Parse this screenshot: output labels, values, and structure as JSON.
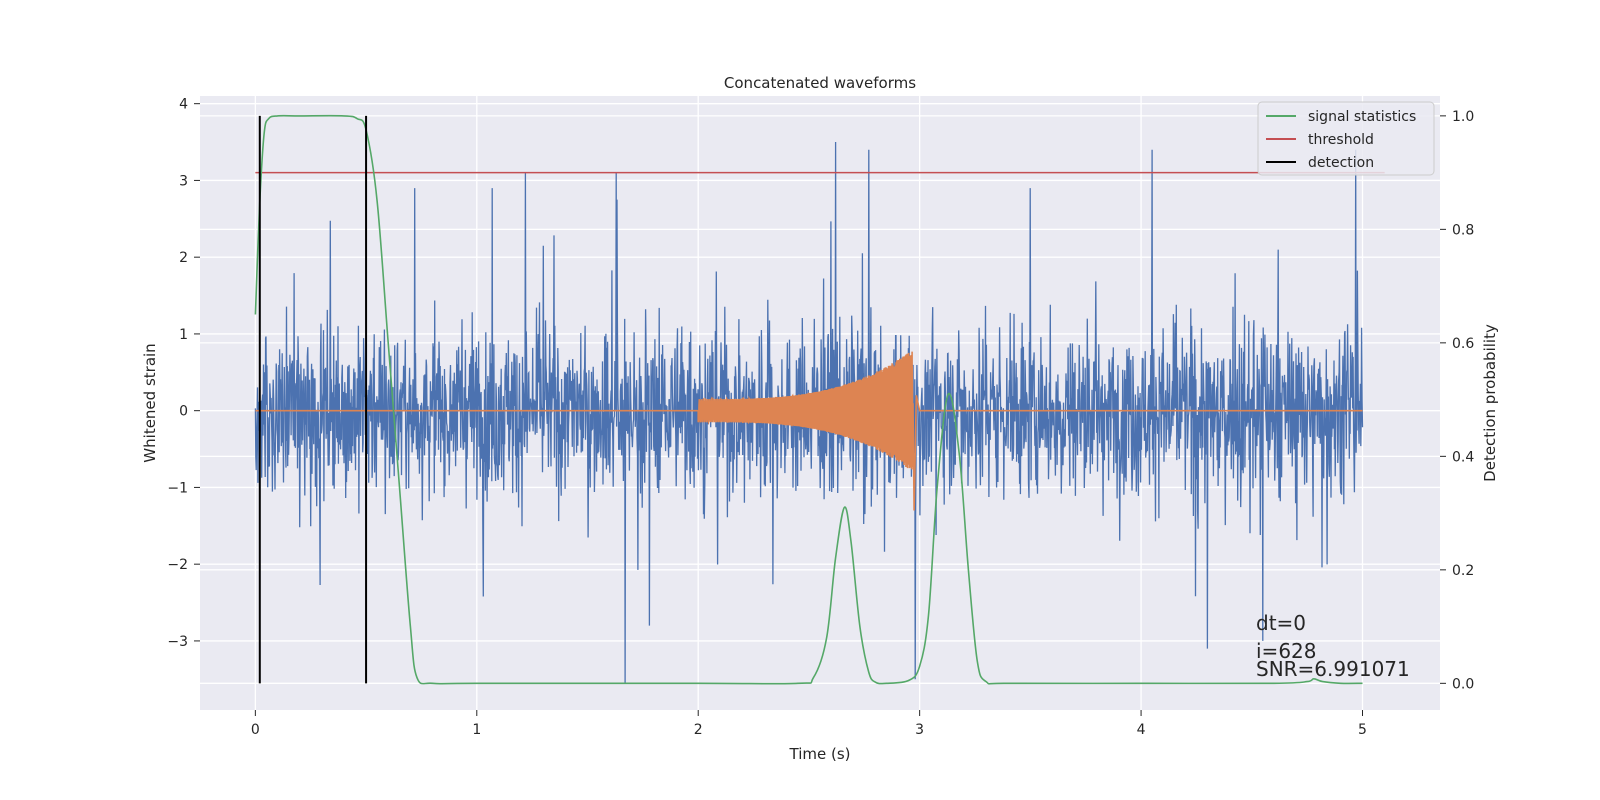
{
  "chart_data": {
    "type": "line",
    "title": "Concatenated waveforms",
    "xlabel": "Time (s)",
    "ylabel": "Whitened strain",
    "y2label": "Detection probability",
    "xlim": [
      -0.25,
      5.35
    ],
    "ylim": [
      -3.9,
      4.1
    ],
    "y2lim": [
      -0.047,
      1.035
    ],
    "xticks": [
      "0",
      "1",
      "2",
      "3",
      "4",
      "5"
    ],
    "xtick_values": [
      0,
      1,
      2,
      3,
      4,
      5
    ],
    "yticks": [
      "−3",
      "−2",
      "−1",
      "0",
      "1",
      "2",
      "3",
      "4"
    ],
    "ytick_values": [
      -3,
      -2,
      -1,
      0,
      1,
      2,
      3,
      4
    ],
    "y2ticks": [
      "0.0",
      "0.2",
      "0.4",
      "0.6",
      "0.8",
      "1.0"
    ],
    "y2tick_values": [
      0,
      0.2,
      0.4,
      0.6,
      0.8,
      1.0
    ],
    "grid": true,
    "legend_position": "top-right",
    "colors": {
      "strain": "#4c72b0",
      "template": "#dd8452",
      "signal_statistics": "#55a868",
      "threshold": "#c44e52",
      "detection": "#000000",
      "background": "#eaeaf2",
      "grid": "#ffffff"
    },
    "series": [
      {
        "name": "",
        "axis": "left",
        "description_kind": "noise",
        "x_range": [
          0,
          5
        ],
        "amplitude_envelope": 1.4,
        "extreme_peaks": [
          {
            "x": 0.72,
            "y": 2.9
          },
          {
            "x": 1.07,
            "y": 2.9
          },
          {
            "x": 1.22,
            "y": 3.1
          },
          {
            "x": 1.63,
            "y": 3.1
          },
          {
            "x": 1.67,
            "y": -3.55
          },
          {
            "x": 2.62,
            "y": 3.5
          },
          {
            "x": 2.77,
            "y": 3.4
          },
          {
            "x": 2.98,
            "y": -3.5
          },
          {
            "x": 4.05,
            "y": 3.4
          },
          {
            "x": 4.3,
            "y": -3.1
          },
          {
            "x": 4.55,
            "y": -3.0
          },
          {
            "x": 4.97,
            "y": 3.4
          },
          {
            "x": 1.78,
            "y": -2.8
          },
          {
            "x": 3.5,
            "y": 2.9
          }
        ]
      },
      {
        "name": "",
        "axis": "left",
        "description_kind": "chirp",
        "x_range": [
          0,
          5
        ],
        "chirp_start": 2.0,
        "chirp_end": 2.97,
        "amplitude_start": 0.15,
        "amplitude_end": 0.8,
        "merger_min": -1.3
      },
      {
        "name": "signal statistics",
        "axis": "right",
        "x": [
          0,
          0.02,
          0.04,
          0.06,
          0.1,
          0.2,
          0.4,
          0.46,
          0.5,
          0.55,
          0.6,
          0.65,
          0.7,
          0.73,
          0.8,
          1.0,
          2.0,
          2.45,
          2.52,
          2.58,
          2.62,
          2.66,
          2.69,
          2.73,
          2.77,
          2.8,
          2.85,
          2.95,
          3.0,
          3.04,
          3.08,
          3.13,
          3.18,
          3.22,
          3.26,
          3.3,
          3.4,
          4.0,
          4.6,
          4.75,
          4.78,
          4.82,
          4.9,
          5.0
        ],
        "y": [
          0.65,
          0.85,
          0.97,
          0.995,
          1.0,
          1.0,
          1.0,
          0.995,
          0.975,
          0.85,
          0.6,
          0.35,
          0.1,
          0.01,
          0.0,
          0.0,
          0.0,
          0.0,
          0.01,
          0.08,
          0.22,
          0.31,
          0.25,
          0.1,
          0.02,
          0.002,
          0.0,
          0.005,
          0.03,
          0.12,
          0.35,
          0.51,
          0.4,
          0.2,
          0.04,
          0.003,
          0.0,
          0.0,
          0.0,
          0.003,
          0.008,
          0.003,
          0.0,
          0.0
        ]
      },
      {
        "name": "threshold",
        "axis": "right",
        "x": [
          0,
          5.1
        ],
        "y": [
          0.9,
          0.9
        ]
      },
      {
        "name": "detection",
        "axis": "right",
        "segments": [
          {
            "x": 0.02,
            "y": [
              0,
              1.0
            ]
          },
          {
            "x": 0.5,
            "y": [
              0,
              1.0
            ]
          }
        ]
      }
    ],
    "annotations": [
      "dt=0",
      "i=628",
      "SNR=6.991071"
    ],
    "legend": [
      "signal statistics",
      "threshold",
      "detection"
    ]
  }
}
